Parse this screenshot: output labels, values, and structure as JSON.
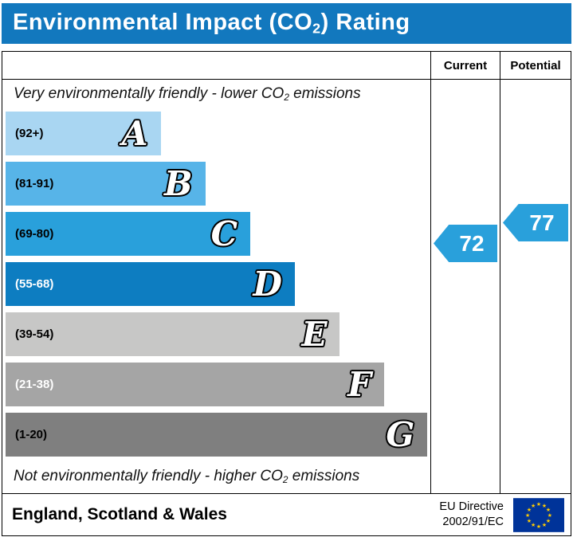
{
  "title": {
    "prefix": "Environmental Impact (CO",
    "sub": "2",
    "suffix": ") Rating"
  },
  "colors": {
    "title_bg": "#1278be",
    "border": "#000000",
    "flag_bg": "#003399",
    "flag_star": "#ffcc00"
  },
  "header": {
    "current": "Current",
    "potential": "Potential"
  },
  "captions": {
    "top_prefix": "Very environmentally friendly - lower CO",
    "top_sub": "2",
    "top_suffix": " emissions",
    "bottom_prefix": "Not environmentally friendly - higher CO",
    "bottom_sub": "2",
    "bottom_suffix": " emissions"
  },
  "chart_data": {
    "type": "bar",
    "title": "Environmental Impact (CO2) Rating",
    "bands": [
      {
        "letter": "A",
        "range": "(92+)",
        "min": 92,
        "max": 100,
        "color": "#a9d6f2",
        "width_pct": 36.5,
        "range_text_color": "#000000"
      },
      {
        "letter": "B",
        "range": "(81-91)",
        "min": 81,
        "max": 91,
        "color": "#57b4e8",
        "width_pct": 47.0,
        "range_text_color": "#000000"
      },
      {
        "letter": "C",
        "range": "(69-80)",
        "min": 69,
        "max": 80,
        "color": "#29a0db",
        "width_pct": 57.6,
        "range_text_color": "#000000"
      },
      {
        "letter": "D",
        "range": "(55-68)",
        "min": 55,
        "max": 68,
        "color": "#0d7dc1",
        "width_pct": 68.1,
        "range_text_color": "#ffffff"
      },
      {
        "letter": "E",
        "range": "(39-54)",
        "min": 39,
        "max": 54,
        "color": "#c7c7c6",
        "width_pct": 78.7,
        "range_text_color": "#000000"
      },
      {
        "letter": "F",
        "range": "(21-38)",
        "min": 21,
        "max": 38,
        "color": "#a5a5a5",
        "width_pct": 89.1,
        "range_text_color": "#ffffff"
      },
      {
        "letter": "G",
        "range": "(1-20)",
        "min": 1,
        "max": 20,
        "color": "#7f7f7f",
        "width_pct": 99.3,
        "range_text_color": "#000000"
      }
    ],
    "current": {
      "value": "72",
      "band": "C",
      "color": "#29a0db"
    },
    "potential": {
      "value": "77",
      "band": "C",
      "color": "#29a0db"
    },
    "legend_position": "none",
    "columns": [
      "Current",
      "Potential"
    ]
  },
  "footer": {
    "region": "England, Scotland & Wales",
    "directive_line1": "EU Directive",
    "directive_line2": "2002/91/EC"
  }
}
